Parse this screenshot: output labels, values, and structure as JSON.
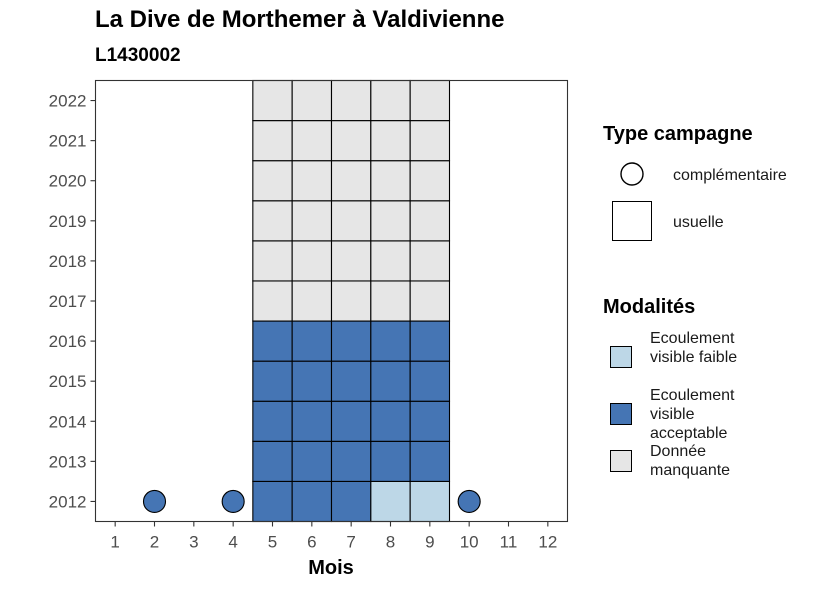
{
  "header": {
    "title": "La Dive de Morthemer à Valdivienne",
    "subtitle": "L1430002"
  },
  "legend": {
    "type_title": "Type campagne",
    "type_items": [
      {
        "label": "complémentaire",
        "shape": "circle"
      },
      {
        "label": "usuelle",
        "shape": "square"
      }
    ],
    "mod_title": "Modalités",
    "mod_items": [
      {
        "label": "Ecoulement visible faible",
        "color": "#bdd7e7"
      },
      {
        "label": "Ecoulement visible acceptable",
        "color": "#4575b4"
      },
      {
        "label": "Donnée manquante",
        "color": "#e6e6e6"
      }
    ]
  },
  "chart_data": {
    "type": "heatmap",
    "title": "La Dive de Morthemer à Valdivienne",
    "subtitle": "L1430002",
    "xlabel": "Mois",
    "ylabel": "",
    "x_ticks": [
      "1",
      "2",
      "3",
      "4",
      "5",
      "6",
      "7",
      "8",
      "9",
      "10",
      "11",
      "12"
    ],
    "y_ticks": [
      "2012",
      "2013",
      "2014",
      "2015",
      "2016",
      "2017",
      "2018",
      "2019",
      "2020",
      "2021",
      "2022"
    ],
    "xlim": [
      0.5,
      12.5
    ],
    "ylim": [
      2011.5,
      2022.5
    ],
    "grid": false,
    "legend_position": "right",
    "colors": {
      "Ecoulement visible faible": "#bdd7e7",
      "Ecoulement visible acceptable": "#4575b4",
      "Donnée manquante": "#e6e6e6"
    },
    "points": [
      {
        "year": 2012,
        "month": 2,
        "type": "complémentaire",
        "modalite": "Ecoulement visible acceptable"
      },
      {
        "year": 2012,
        "month": 4,
        "type": "complémentaire",
        "modalite": "Ecoulement visible acceptable"
      },
      {
        "year": 2012,
        "month": 5,
        "type": "usuelle",
        "modalite": "Ecoulement visible acceptable"
      },
      {
        "year": 2012,
        "month": 6,
        "type": "usuelle",
        "modalite": "Ecoulement visible acceptable"
      },
      {
        "year": 2012,
        "month": 7,
        "type": "usuelle",
        "modalite": "Ecoulement visible acceptable"
      },
      {
        "year": 2012,
        "month": 8,
        "type": "usuelle",
        "modalite": "Ecoulement visible faible"
      },
      {
        "year": 2012,
        "month": 9,
        "type": "usuelle",
        "modalite": "Ecoulement visible faible"
      },
      {
        "year": 2012,
        "month": 10,
        "type": "complémentaire",
        "modalite": "Ecoulement visible acceptable"
      },
      {
        "year": 2013,
        "month": 5,
        "type": "usuelle",
        "modalite": "Ecoulement visible acceptable"
      },
      {
        "year": 2013,
        "month": 6,
        "type": "usuelle",
        "modalite": "Ecoulement visible acceptable"
      },
      {
        "year": 2013,
        "month": 7,
        "type": "usuelle",
        "modalite": "Ecoulement visible acceptable"
      },
      {
        "year": 2013,
        "month": 8,
        "type": "usuelle",
        "modalite": "Ecoulement visible acceptable"
      },
      {
        "year": 2013,
        "month": 9,
        "type": "usuelle",
        "modalite": "Ecoulement visible acceptable"
      },
      {
        "year": 2014,
        "month": 5,
        "type": "usuelle",
        "modalite": "Ecoulement visible acceptable"
      },
      {
        "year": 2014,
        "month": 6,
        "type": "usuelle",
        "modalite": "Ecoulement visible acceptable"
      },
      {
        "year": 2014,
        "month": 7,
        "type": "usuelle",
        "modalite": "Ecoulement visible acceptable"
      },
      {
        "year": 2014,
        "month": 8,
        "type": "usuelle",
        "modalite": "Ecoulement visible acceptable"
      },
      {
        "year": 2014,
        "month": 9,
        "type": "usuelle",
        "modalite": "Ecoulement visible acceptable"
      },
      {
        "year": 2015,
        "month": 5,
        "type": "usuelle",
        "modalite": "Ecoulement visible acceptable"
      },
      {
        "year": 2015,
        "month": 6,
        "type": "usuelle",
        "modalite": "Ecoulement visible acceptable"
      },
      {
        "year": 2015,
        "month": 7,
        "type": "usuelle",
        "modalite": "Ecoulement visible acceptable"
      },
      {
        "year": 2015,
        "month": 8,
        "type": "usuelle",
        "modalite": "Ecoulement visible acceptable"
      },
      {
        "year": 2015,
        "month": 9,
        "type": "usuelle",
        "modalite": "Ecoulement visible acceptable"
      },
      {
        "year": 2016,
        "month": 5,
        "type": "usuelle",
        "modalite": "Ecoulement visible acceptable"
      },
      {
        "year": 2016,
        "month": 6,
        "type": "usuelle",
        "modalite": "Ecoulement visible acceptable"
      },
      {
        "year": 2016,
        "month": 7,
        "type": "usuelle",
        "modalite": "Ecoulement visible acceptable"
      },
      {
        "year": 2016,
        "month": 8,
        "type": "usuelle",
        "modalite": "Ecoulement visible acceptable"
      },
      {
        "year": 2016,
        "month": 9,
        "type": "usuelle",
        "modalite": "Ecoulement visible acceptable"
      },
      {
        "year": 2017,
        "month": 5,
        "type": "usuelle",
        "modalite": "Donnée manquante"
      },
      {
        "year": 2017,
        "month": 6,
        "type": "usuelle",
        "modalite": "Donnée manquante"
      },
      {
        "year": 2017,
        "month": 7,
        "type": "usuelle",
        "modalite": "Donnée manquante"
      },
      {
        "year": 2017,
        "month": 8,
        "type": "usuelle",
        "modalite": "Donnée manquante"
      },
      {
        "year": 2017,
        "month": 9,
        "type": "usuelle",
        "modalite": "Donnée manquante"
      },
      {
        "year": 2018,
        "month": 5,
        "type": "usuelle",
        "modalite": "Donnée manquante"
      },
      {
        "year": 2018,
        "month": 6,
        "type": "usuelle",
        "modalite": "Donnée manquante"
      },
      {
        "year": 2018,
        "month": 7,
        "type": "usuelle",
        "modalite": "Donnée manquante"
      },
      {
        "year": 2018,
        "month": 8,
        "type": "usuelle",
        "modalite": "Donnée manquante"
      },
      {
        "year": 2018,
        "month": 9,
        "type": "usuelle",
        "modalite": "Donnée manquante"
      },
      {
        "year": 2019,
        "month": 5,
        "type": "usuelle",
        "modalite": "Donnée manquante"
      },
      {
        "year": 2019,
        "month": 6,
        "type": "usuelle",
        "modalite": "Donnée manquante"
      },
      {
        "year": 2019,
        "month": 7,
        "type": "usuelle",
        "modalite": "Donnée manquante"
      },
      {
        "year": 2019,
        "month": 8,
        "type": "usuelle",
        "modalite": "Donnée manquante"
      },
      {
        "year": 2019,
        "month": 9,
        "type": "usuelle",
        "modalite": "Donnée manquante"
      },
      {
        "year": 2020,
        "month": 5,
        "type": "usuelle",
        "modalite": "Donnée manquante"
      },
      {
        "year": 2020,
        "month": 6,
        "type": "usuelle",
        "modalite": "Donnée manquante"
      },
      {
        "year": 2020,
        "month": 7,
        "type": "usuelle",
        "modalite": "Donnée manquante"
      },
      {
        "year": 2020,
        "month": 8,
        "type": "usuelle",
        "modalite": "Donnée manquante"
      },
      {
        "year": 2020,
        "month": 9,
        "type": "usuelle",
        "modalite": "Donnée manquante"
      },
      {
        "year": 2021,
        "month": 5,
        "type": "usuelle",
        "modalite": "Donnée manquante"
      },
      {
        "year": 2021,
        "month": 6,
        "type": "usuelle",
        "modalite": "Donnée manquante"
      },
      {
        "year": 2021,
        "month": 7,
        "type": "usuelle",
        "modalite": "Donnée manquante"
      },
      {
        "year": 2021,
        "month": 8,
        "type": "usuelle",
        "modalite": "Donnée manquante"
      },
      {
        "year": 2021,
        "month": 9,
        "type": "usuelle",
        "modalite": "Donnée manquante"
      },
      {
        "year": 2022,
        "month": 5,
        "type": "usuelle",
        "modalite": "Donnée manquante"
      },
      {
        "year": 2022,
        "month": 6,
        "type": "usuelle",
        "modalite": "Donnée manquante"
      },
      {
        "year": 2022,
        "month": 7,
        "type": "usuelle",
        "modalite": "Donnée manquante"
      },
      {
        "year": 2022,
        "month": 8,
        "type": "usuelle",
        "modalite": "Donnée manquante"
      },
      {
        "year": 2022,
        "month": 9,
        "type": "usuelle",
        "modalite": "Donnée manquante"
      }
    ]
  }
}
